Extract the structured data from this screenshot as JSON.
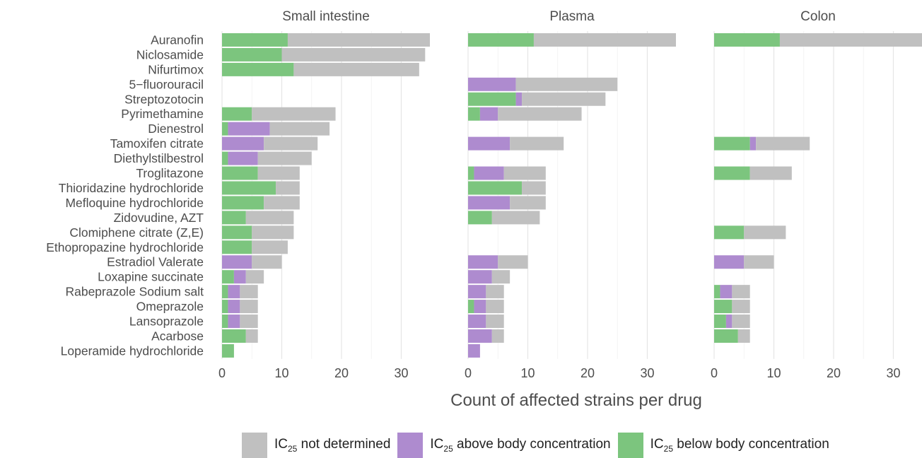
{
  "chart_data": {
    "type": "bar",
    "orientation": "horizontal",
    "stacked": true,
    "xlabel": "Count of affected strains per drug",
    "xlim": [
      0,
      35
    ],
    "xticks": [
      0,
      10,
      20,
      30
    ],
    "grid": true,
    "legend_position": "bottom",
    "colors": {
      "not_determined": "#c0c0c0",
      "above": "#ae8bcf",
      "below": "#7cc57e"
    },
    "legend": [
      {
        "key": "not_determined",
        "prefix": "IC",
        "sub": "25",
        "text": " not determined"
      },
      {
        "key": "above",
        "prefix": "IC",
        "sub": "25",
        "text": " above body concentration"
      },
      {
        "key": "below",
        "prefix": "IC",
        "sub": "25",
        "text": " below body concentration"
      }
    ],
    "categories": [
      "Auranofin",
      "Niclosamide",
      "Nifurtimox",
      "5−fluorouracil",
      "Streptozotocin",
      "Pyrimethamine",
      "Dienestrol",
      "Tamoxifen citrate",
      "Diethylstilbestrol",
      "Troglitazone",
      "Thioridazine hydrochloride",
      "Mefloquine hydrochloride",
      "Zidovudine, AZT",
      "Clomiphene citrate (Z,E)",
      "Ethopropazine hydrochloride",
      "Estradiol Valerate",
      "Loxapine succinate",
      "Rabeprazole Sodium salt",
      "Omeprazole",
      "Lansoprazole",
      "Acarbose",
      "Loperamide hydrochloride"
    ],
    "panels": [
      {
        "title": "Small intestine",
        "values": [
          {
            "below": 11,
            "above": 0,
            "not_determined": 25
          },
          {
            "below": 10,
            "above": 0,
            "not_determined": 24
          },
          {
            "below": 12,
            "above": 0,
            "not_determined": 21
          },
          null,
          null,
          {
            "below": 5,
            "above": 0,
            "not_determined": 14
          },
          {
            "below": 1,
            "above": 7,
            "not_determined": 10
          },
          {
            "below": 0,
            "above": 7,
            "not_determined": 9
          },
          {
            "below": 1,
            "above": 5,
            "not_determined": 9
          },
          {
            "below": 6,
            "above": 0,
            "not_determined": 7
          },
          {
            "below": 9,
            "above": 0,
            "not_determined": 4
          },
          {
            "below": 7,
            "above": 0,
            "not_determined": 6
          },
          {
            "below": 4,
            "above": 0,
            "not_determined": 8
          },
          {
            "below": 5,
            "above": 0,
            "not_determined": 7
          },
          {
            "below": 5,
            "above": 0,
            "not_determined": 6
          },
          {
            "below": 0,
            "above": 5,
            "not_determined": 5
          },
          {
            "below": 2,
            "above": 2,
            "not_determined": 3
          },
          {
            "below": 1,
            "above": 2,
            "not_determined": 3
          },
          {
            "below": 1,
            "above": 2,
            "not_determined": 3
          },
          {
            "below": 1,
            "above": 2,
            "not_determined": 3
          },
          {
            "below": 4,
            "above": 0,
            "not_determined": 2
          },
          {
            "below": 2,
            "above": 0,
            "not_determined": 0
          }
        ]
      },
      {
        "title": "Plasma",
        "values": [
          {
            "below": 11,
            "above": 0,
            "not_determined": 25
          },
          null,
          null,
          {
            "below": 0,
            "above": 8,
            "not_determined": 17
          },
          {
            "below": 8,
            "above": 1,
            "not_determined": 14
          },
          {
            "below": 2,
            "above": 3,
            "not_determined": 14
          },
          null,
          {
            "below": 0,
            "above": 7,
            "not_determined": 9
          },
          null,
          {
            "below": 1,
            "above": 5,
            "not_determined": 7
          },
          {
            "below": 9,
            "above": 0,
            "not_determined": 4
          },
          {
            "below": 0,
            "above": 7,
            "not_determined": 6
          },
          {
            "below": 4,
            "above": 0,
            "not_determined": 8
          },
          null,
          null,
          {
            "below": 0,
            "above": 5,
            "not_determined": 5
          },
          {
            "below": 0,
            "above": 4,
            "not_determined": 3
          },
          {
            "below": 0,
            "above": 3,
            "not_determined": 3
          },
          {
            "below": 1,
            "above": 2,
            "not_determined": 3
          },
          {
            "below": 0,
            "above": 3,
            "not_determined": 3
          },
          {
            "below": 0,
            "above": 4,
            "not_determined": 2
          },
          {
            "below": 0,
            "above": 2,
            "not_determined": 0
          }
        ]
      },
      {
        "title": "Colon",
        "values": [
          {
            "below": 11,
            "above": 0,
            "not_determined": 25
          },
          null,
          null,
          null,
          null,
          null,
          null,
          {
            "below": 6,
            "above": 1,
            "not_determined": 9
          },
          null,
          {
            "below": 6,
            "above": 0,
            "not_determined": 7
          },
          null,
          null,
          null,
          {
            "below": 5,
            "above": 0,
            "not_determined": 7
          },
          null,
          {
            "below": 0,
            "above": 5,
            "not_determined": 5
          },
          null,
          {
            "below": 1,
            "above": 2,
            "not_determined": 3
          },
          {
            "below": 3,
            "above": 0,
            "not_determined": 3
          },
          {
            "below": 2,
            "above": 1,
            "not_determined": 3
          },
          {
            "below": 4,
            "above": 0,
            "not_determined": 2
          },
          null
        ]
      }
    ]
  }
}
